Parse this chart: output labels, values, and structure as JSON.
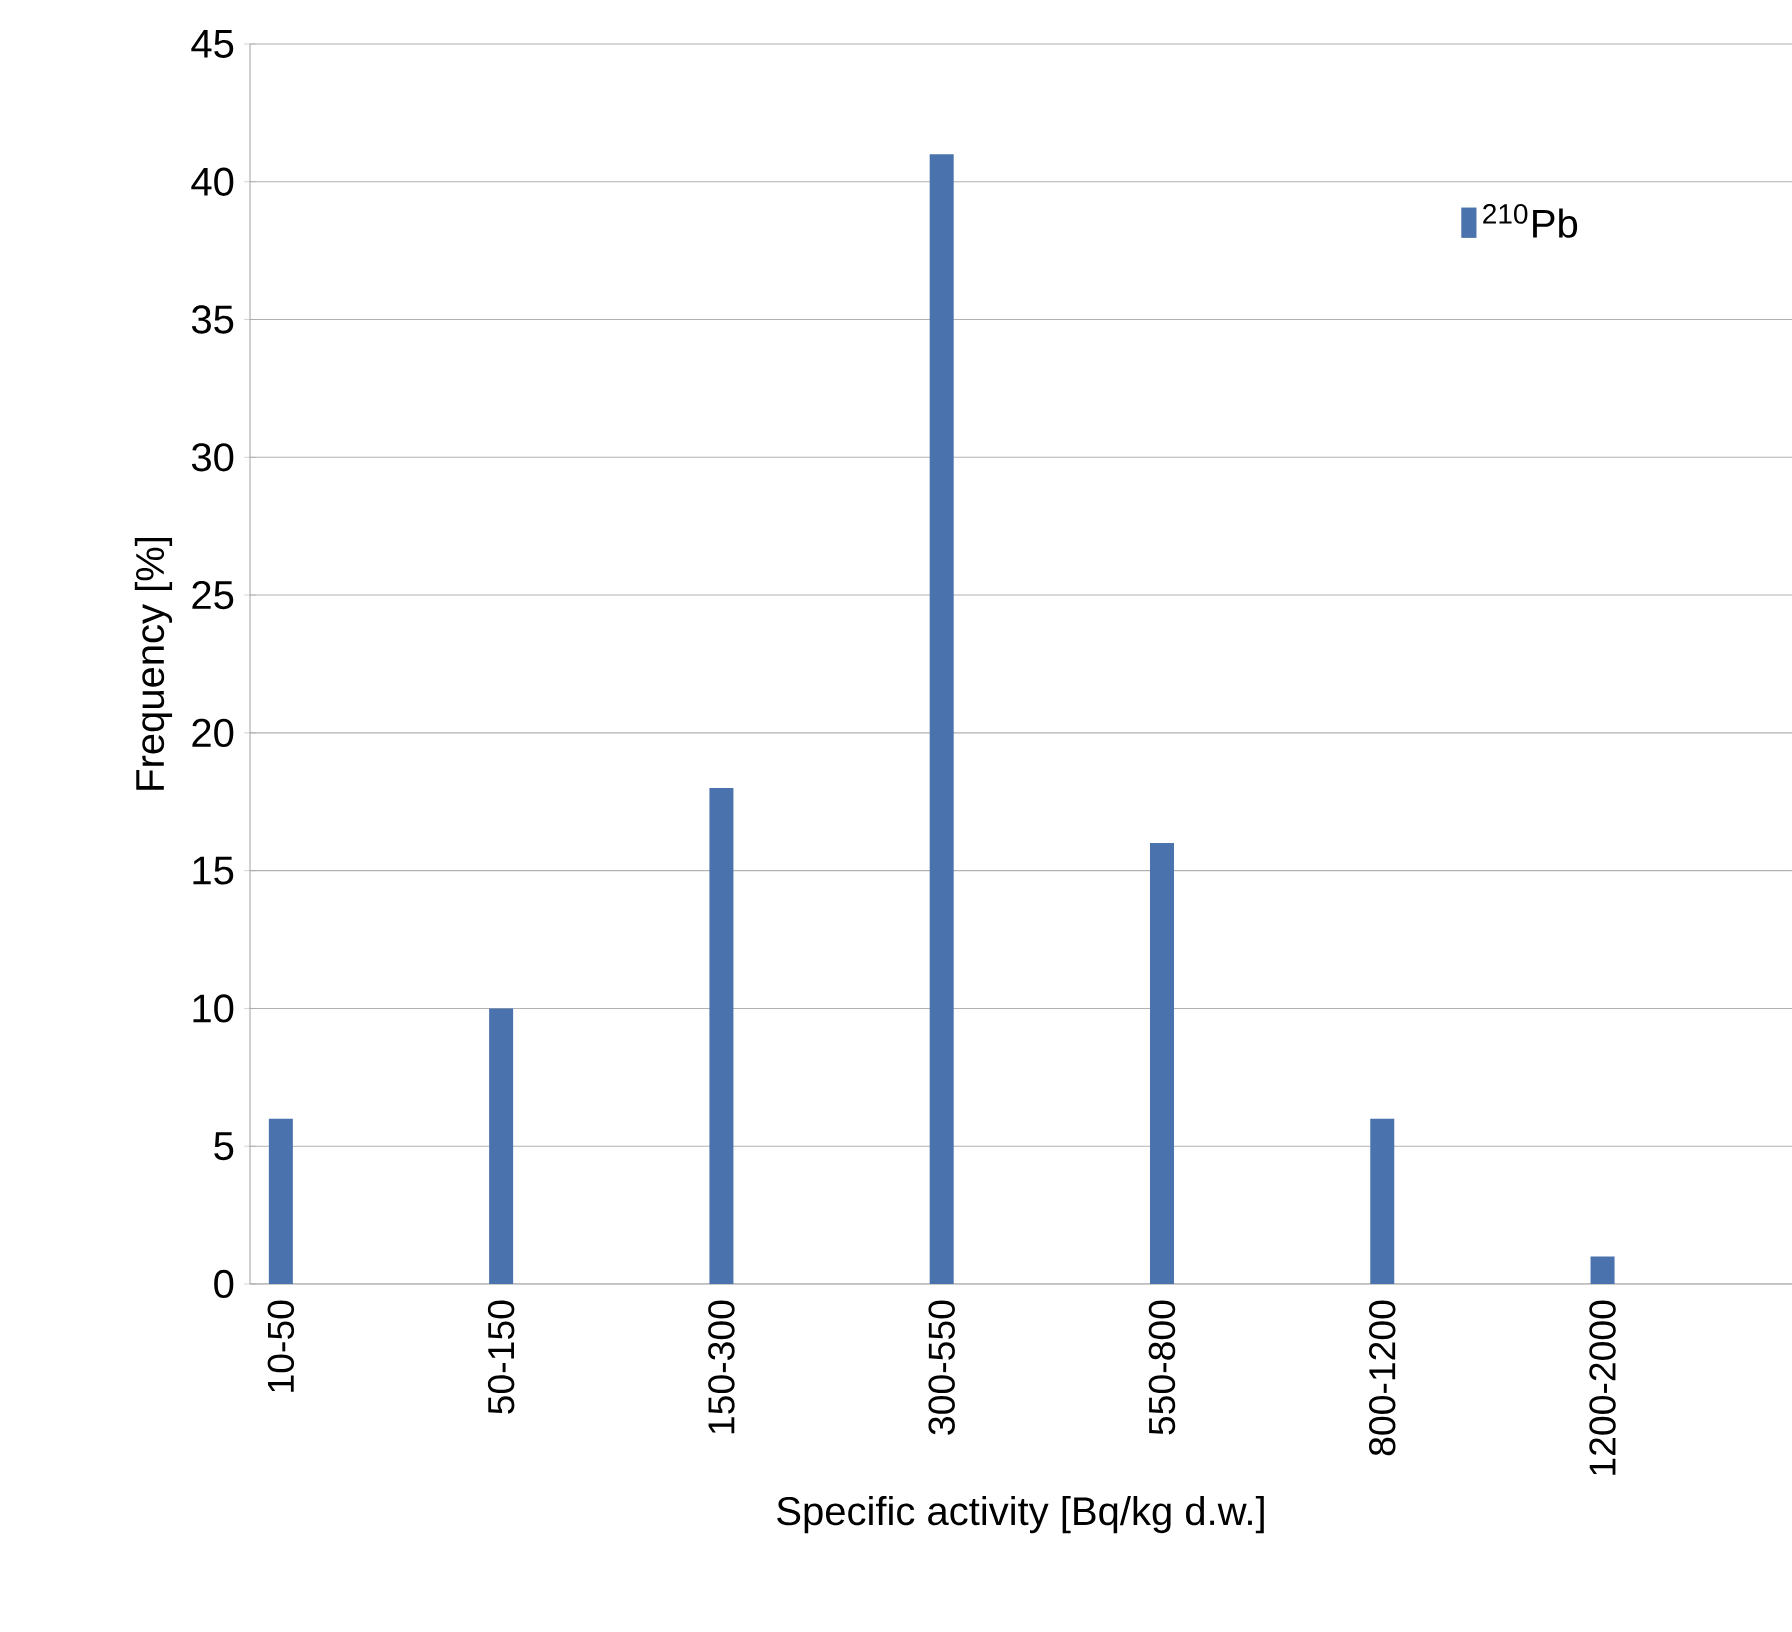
{
  "chart_data": {
    "type": "bar",
    "xlabel": "Specific activity [Bq/kg d.w.]",
    "ylabel": "Frequency [%]",
    "categories": [
      "10-50",
      "50-150",
      "150-300",
      "300-550",
      "550-800",
      "800-1200",
      "1200-2000"
    ],
    "series": [
      {
        "name": "$^{210}$Pb",
        "color": "#4a72ac",
        "values": [
          6,
          10,
          18,
          41,
          16,
          6,
          1
        ]
      }
    ],
    "ylim": [
      0,
      45
    ],
    "yticks": [
      0,
      5,
      10,
      15,
      20,
      25,
      30,
      35,
      40,
      45
    ],
    "grid": "y",
    "legend": "top right"
  }
}
